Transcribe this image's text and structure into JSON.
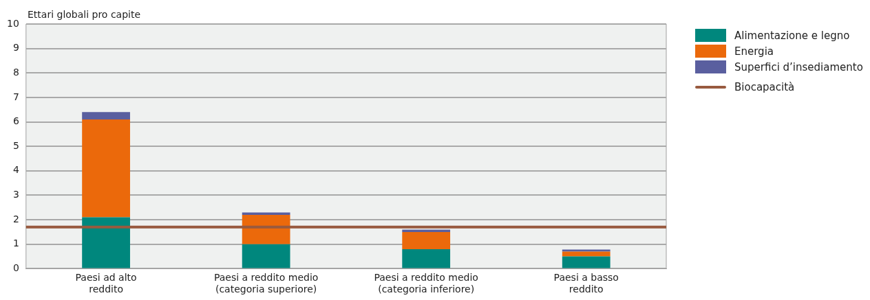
{
  "chart_data": {
    "type": "bar",
    "stacked": true,
    "ylabel": "Ettari globali pro capite",
    "categories": [
      "Paesi ad alto\nreddito",
      "Paesi a reddito medio\n(categoria superiore)",
      "Paesi a reddito medio\n(categoria inferiore)",
      "Paesi a basso\nreddito"
    ],
    "series": [
      {
        "name": "Alimentazione e legno",
        "color": "#00877d",
        "values": [
          2.1,
          1.0,
          0.8,
          0.5
        ]
      },
      {
        "name": "Energia",
        "color": "#eb690b",
        "values": [
          4.0,
          1.2,
          0.7,
          0.2
        ]
      },
      {
        "name": "Superfici d’insediamento",
        "color": "#5a5f9f",
        "values": [
          0.3,
          0.1,
          0.1,
          0.08
        ]
      }
    ],
    "ref_lines": [
      {
        "axis": "y",
        "value": 1.7,
        "label": "Biocapacità",
        "color": "#985a3f"
      }
    ],
    "ylim": [
      0,
      10
    ],
    "yticks": [
      0,
      1,
      2,
      3,
      4,
      5,
      6,
      7,
      8,
      9,
      10
    ],
    "grid": "y",
    "legend": "right"
  }
}
